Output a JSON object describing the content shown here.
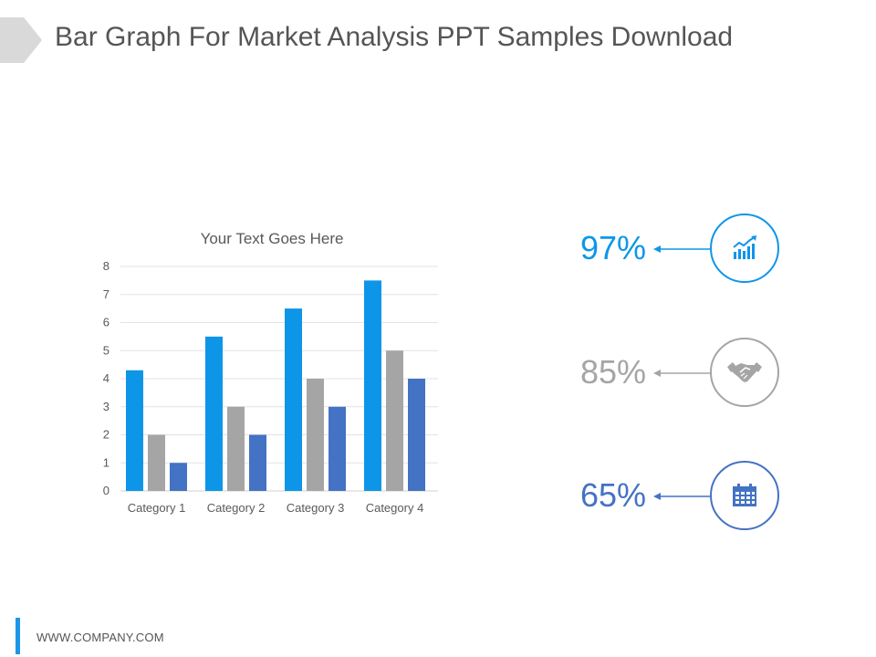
{
  "page": {
    "title": "Bar Graph For Market Analysis PPT Samples Download",
    "footer": "WWW.COMPANY.COM"
  },
  "chart_data": {
    "type": "bar",
    "title": "Your Text Goes Here",
    "categories": [
      "Category 1",
      "Category 2",
      "Category 3",
      "Category 4"
    ],
    "series": [
      {
        "values": [
          4.3,
          5.5,
          6.5,
          7.5
        ],
        "color": "#0d96e8"
      },
      {
        "values": [
          2,
          3,
          4,
          5
        ],
        "color": "#a5a5a5"
      },
      {
        "values": [
          1,
          2,
          3,
          4
        ],
        "color": "#4472c4"
      }
    ],
    "ylim": [
      0,
      8
    ],
    "yticks": [
      "0",
      "1",
      "2",
      "3",
      "4",
      "5",
      "6",
      "7",
      "8"
    ],
    "grid": true,
    "xlabel": "",
    "ylabel": ""
  },
  "stats": [
    {
      "value": "97%",
      "icon": "growth-chart-icon",
      "color": "#0d96e8"
    },
    {
      "value": "85%",
      "icon": "handshake-icon",
      "color": "#a5a5a5"
    },
    {
      "value": "65%",
      "icon": "calendar-icon",
      "color": "#4472c4"
    }
  ],
  "colors": {
    "accent_blue": "#0d96e8",
    "gray": "#a5a5a5",
    "dark_blue": "#4472c4",
    "footer_bar": "#1e96e6"
  }
}
